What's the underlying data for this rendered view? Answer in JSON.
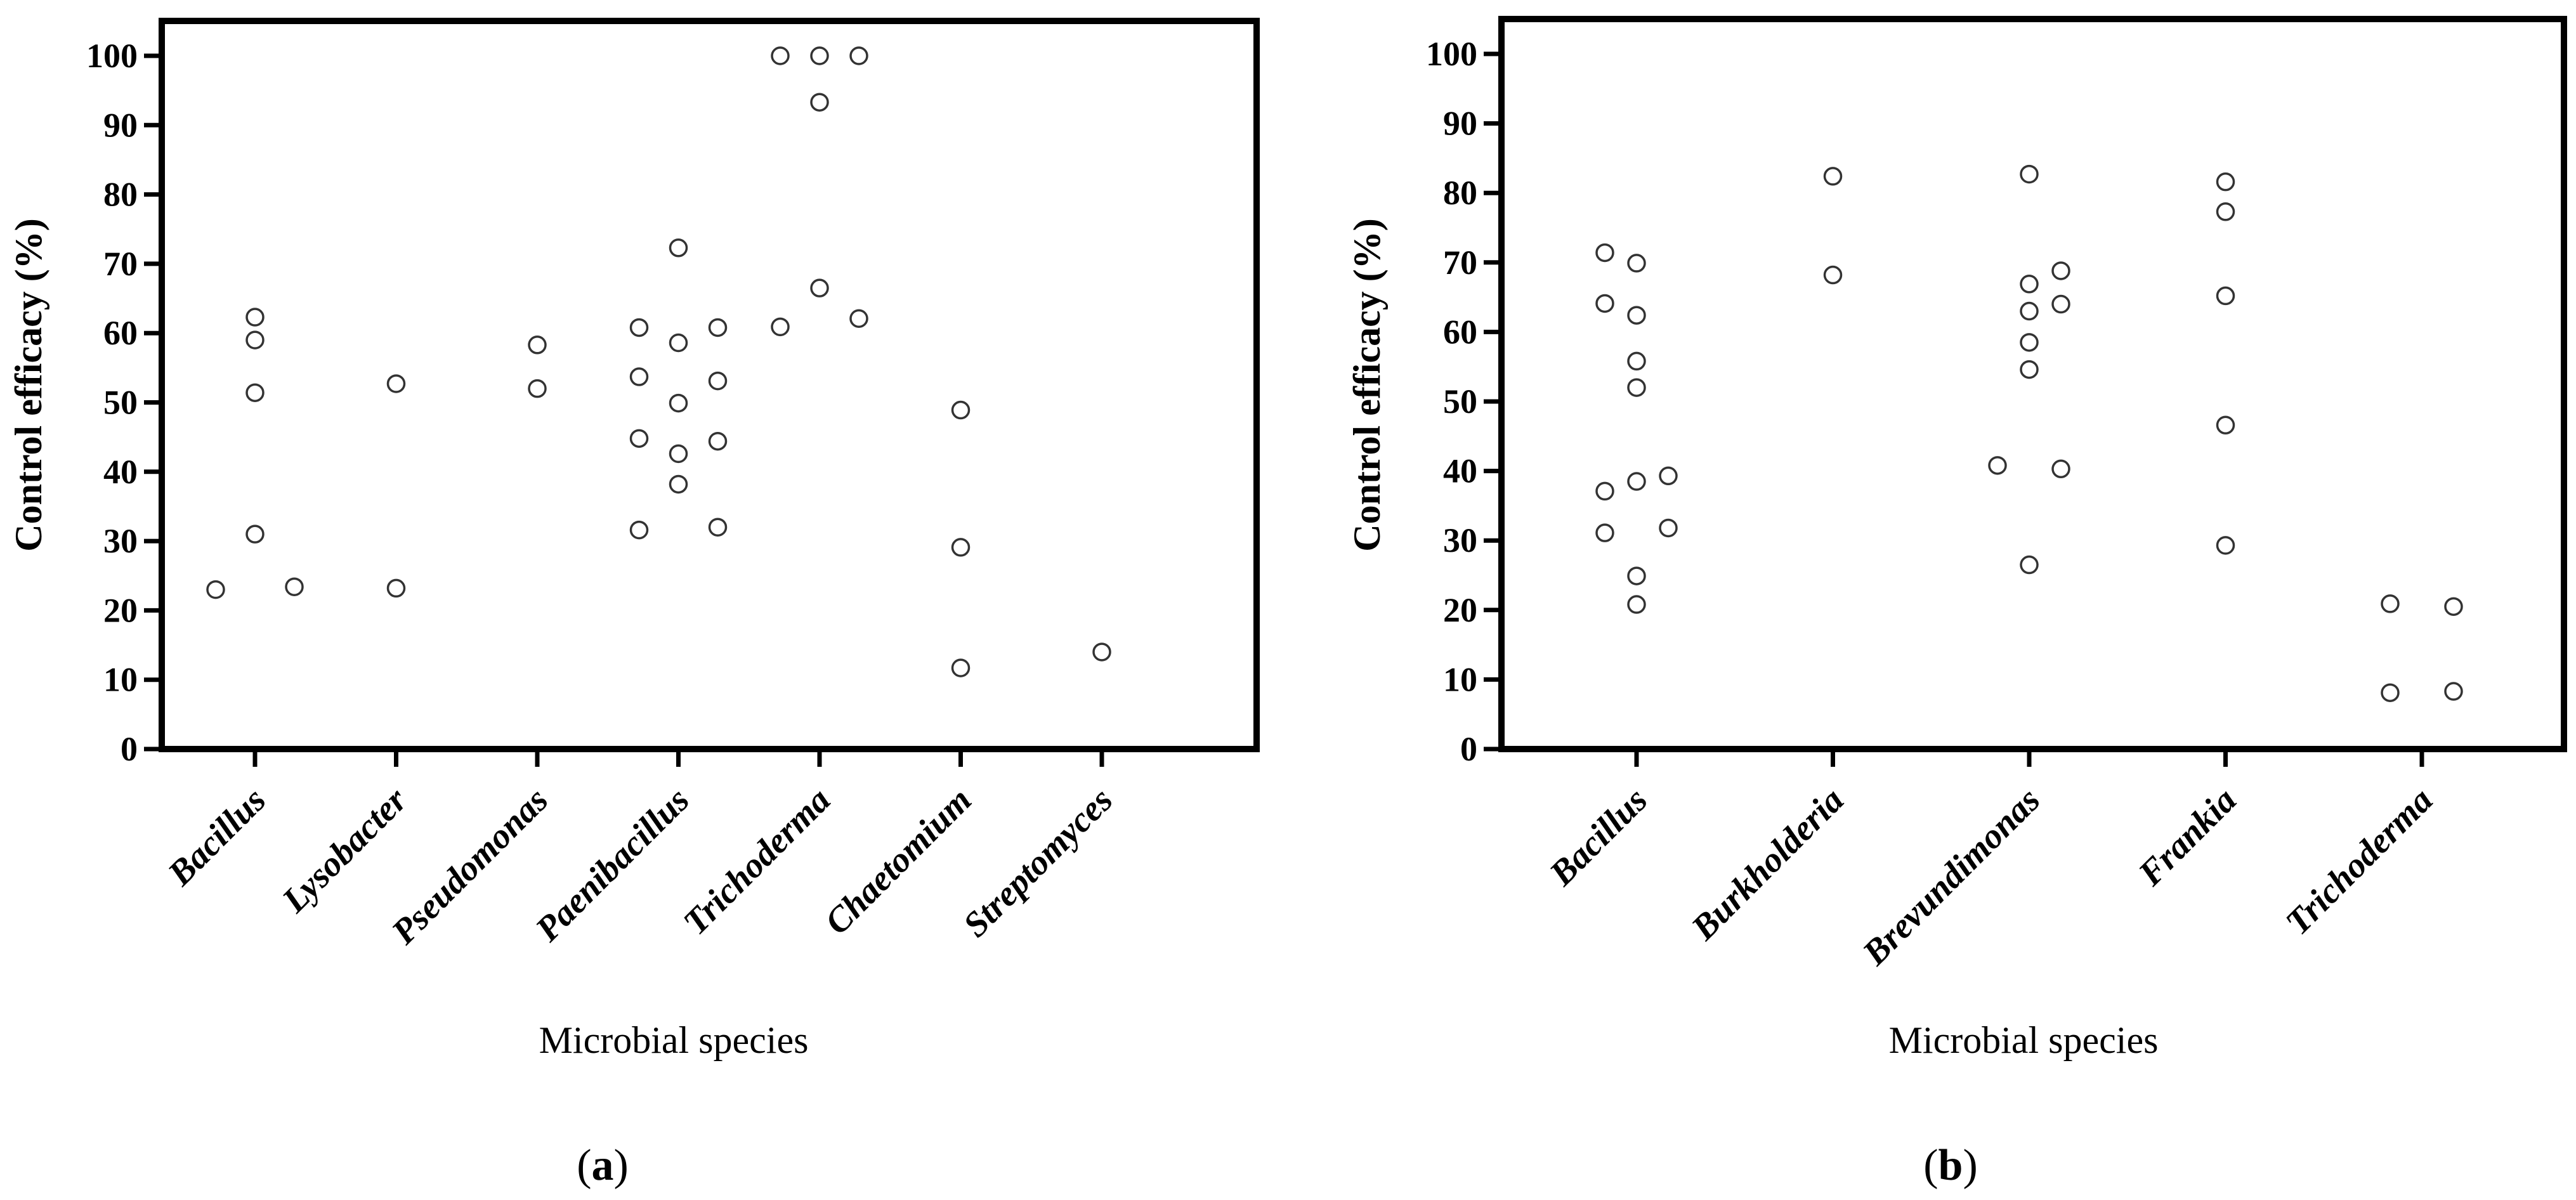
{
  "chart_data": [
    {
      "type": "scatter",
      "panel": "a",
      "ylabel": "Control efficacy (%)",
      "xlabel": "Microbial species",
      "ylim": [
        0,
        100
      ],
      "yticks": [
        0,
        10,
        20,
        30,
        40,
        50,
        60,
        70,
        80,
        90,
        100
      ],
      "categories": [
        "Bacillus",
        "Lysobacter",
        "Pseudomonas",
        "Paenibacillus",
        "Trichoderma",
        "Chaetomium",
        "Streptomyces"
      ],
      "points": [
        {
          "category": "Bacillus",
          "offset": -1,
          "y": 23.0
        },
        {
          "category": "Bacillus",
          "offset": 0,
          "y": 62.3
        },
        {
          "category": "Bacillus",
          "offset": 0,
          "y": 59.0
        },
        {
          "category": "Bacillus",
          "offset": 0,
          "y": 51.4
        },
        {
          "category": "Bacillus",
          "offset": 0,
          "y": 31.0
        },
        {
          "category": "Bacillus",
          "offset": 1,
          "y": 23.4
        },
        {
          "category": "Lysobacter",
          "offset": 0,
          "y": 52.7
        },
        {
          "category": "Lysobacter",
          "offset": 0,
          "y": 23.2
        },
        {
          "category": "Pseudomonas",
          "offset": 0,
          "y": 58.3
        },
        {
          "category": "Pseudomonas",
          "offset": 0,
          "y": 52.0
        },
        {
          "category": "Paenibacillus",
          "offset": -1,
          "y": 60.8
        },
        {
          "category": "Paenibacillus",
          "offset": -1,
          "y": 53.7
        },
        {
          "category": "Paenibacillus",
          "offset": -1,
          "y": 44.8
        },
        {
          "category": "Paenibacillus",
          "offset": -1,
          "y": 31.6
        },
        {
          "category": "Paenibacillus",
          "offset": 0,
          "y": 72.3
        },
        {
          "category": "Paenibacillus",
          "offset": 0,
          "y": 58.6
        },
        {
          "category": "Paenibacillus",
          "offset": 0,
          "y": 49.9
        },
        {
          "category": "Paenibacillus",
          "offset": 0,
          "y": 42.6
        },
        {
          "category": "Paenibacillus",
          "offset": 0,
          "y": 38.2
        },
        {
          "category": "Paenibacillus",
          "offset": 1,
          "y": 60.8
        },
        {
          "category": "Paenibacillus",
          "offset": 1,
          "y": 53.1
        },
        {
          "category": "Paenibacillus",
          "offset": 1,
          "y": 44.4
        },
        {
          "category": "Paenibacillus",
          "offset": 1,
          "y": 32.0
        },
        {
          "category": "Trichoderma",
          "offset": -1,
          "y": 100.0
        },
        {
          "category": "Trichoderma",
          "offset": -1,
          "y": 60.9
        },
        {
          "category": "Trichoderma",
          "offset": 0,
          "y": 100.0
        },
        {
          "category": "Trichoderma",
          "offset": 0,
          "y": 93.3
        },
        {
          "category": "Trichoderma",
          "offset": 0,
          "y": 66.5
        },
        {
          "category": "Trichoderma",
          "offset": 1,
          "y": 100.0
        },
        {
          "category": "Trichoderma",
          "offset": 1,
          "y": 62.1
        },
        {
          "category": "Chaetomium",
          "offset": 0,
          "y": 48.9
        },
        {
          "category": "Chaetomium",
          "offset": 0,
          "y": 29.1
        },
        {
          "category": "Chaetomium",
          "offset": 0,
          "y": 11.7
        },
        {
          "category": "Streptomyces",
          "offset": 0,
          "y": 14.0
        }
      ],
      "panel_label": {
        "open": "(",
        "letter": "a",
        "close": ")"
      }
    },
    {
      "type": "scatter",
      "panel": "b",
      "ylabel": "Control efficacy (%)",
      "xlabel": "Microbial species",
      "ylim": [
        0,
        100
      ],
      "yticks": [
        0,
        10,
        20,
        30,
        40,
        50,
        60,
        70,
        80,
        90,
        100
      ],
      "categories": [
        "Bacillus",
        "Burkholderia",
        "Brevundimonas",
        "Frankia",
        "Trichoderma"
      ],
      "points": [
        {
          "category": "Bacillus",
          "offset": -1,
          "y": 71.4
        },
        {
          "category": "Bacillus",
          "offset": -1,
          "y": 64.1
        },
        {
          "category": "Bacillus",
          "offset": -1,
          "y": 37.1
        },
        {
          "category": "Bacillus",
          "offset": -1,
          "y": 31.1
        },
        {
          "category": "Bacillus",
          "offset": 0,
          "y": 69.9
        },
        {
          "category": "Bacillus",
          "offset": 0,
          "y": 62.4
        },
        {
          "category": "Bacillus",
          "offset": 0,
          "y": 55.8
        },
        {
          "category": "Bacillus",
          "offset": 0,
          "y": 52.0
        },
        {
          "category": "Bacillus",
          "offset": 0,
          "y": 38.5
        },
        {
          "category": "Bacillus",
          "offset": 0,
          "y": 24.9
        },
        {
          "category": "Bacillus",
          "offset": 0,
          "y": 20.8
        },
        {
          "category": "Bacillus",
          "offset": 1,
          "y": 39.3
        },
        {
          "category": "Bacillus",
          "offset": 1,
          "y": 31.8
        },
        {
          "category": "Burkholderia",
          "offset": 0,
          "y": 82.4
        },
        {
          "category": "Burkholderia",
          "offset": 0,
          "y": 68.2
        },
        {
          "category": "Brevundimonas",
          "offset": -1,
          "y": 40.8
        },
        {
          "category": "Brevundimonas",
          "offset": 0,
          "y": 82.7
        },
        {
          "category": "Brevundimonas",
          "offset": 0,
          "y": 66.9
        },
        {
          "category": "Brevundimonas",
          "offset": 0,
          "y": 63.0
        },
        {
          "category": "Brevundimonas",
          "offset": 0,
          "y": 58.5
        },
        {
          "category": "Brevundimonas",
          "offset": 0,
          "y": 54.6
        },
        {
          "category": "Brevundimonas",
          "offset": 0,
          "y": 26.5
        },
        {
          "category": "Brevundimonas",
          "offset": 1,
          "y": 68.8
        },
        {
          "category": "Brevundimonas",
          "offset": 1,
          "y": 64.0
        },
        {
          "category": "Brevundimonas",
          "offset": 1,
          "y": 40.3
        },
        {
          "category": "Frankia",
          "offset": 0,
          "y": 81.6
        },
        {
          "category": "Frankia",
          "offset": 0,
          "y": 77.3
        },
        {
          "category": "Frankia",
          "offset": 0,
          "y": 65.2
        },
        {
          "category": "Frankia",
          "offset": 0,
          "y": 46.6
        },
        {
          "category": "Frankia",
          "offset": 0,
          "y": 29.3
        },
        {
          "category": "Trichoderma",
          "offset": -1,
          "y": 20.9
        },
        {
          "category": "Trichoderma",
          "offset": -1,
          "y": 8.1
        },
        {
          "category": "Trichoderma",
          "offset": 1,
          "y": 20.5
        },
        {
          "category": "Trichoderma",
          "offset": 1,
          "y": 8.3
        }
      ],
      "panel_label": {
        "open": "(",
        "letter": "b",
        "close": ")"
      }
    }
  ],
  "colors": {
    "axis": "#000000",
    "marker_stroke": "#333333",
    "background": "#ffffff"
  }
}
